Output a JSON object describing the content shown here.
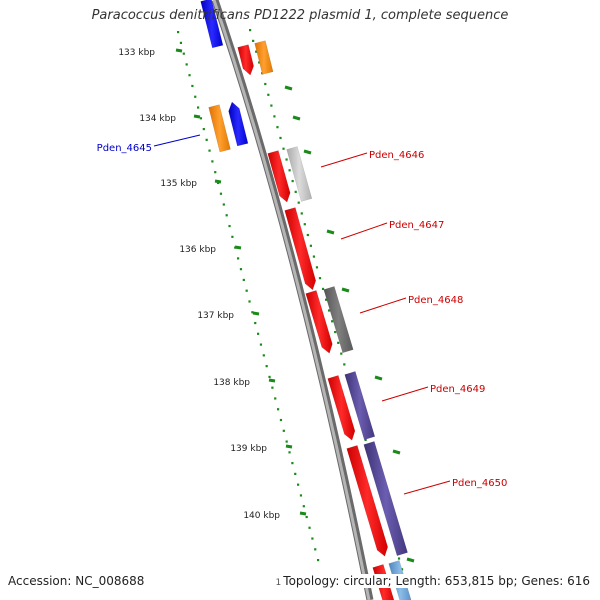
{
  "title": "Paracoccus denitrificans PD1222 plasmid 1, complete sequence",
  "footer": {
    "accession": "Accession: NC_008688",
    "summary": "Topology: circular; Length: 653,815 bp; Genes: 616",
    "stray_digit": "1"
  },
  "colors": {
    "backbone": "#8c8c8c",
    "tick_dots": "#1a8a1a",
    "reverse_label": "#0000cc",
    "forward_label": "#cc0000"
  },
  "scale_ticks": [
    "133 kbp",
    "134 kbp",
    "135 kbp",
    "136 kbp",
    "137 kbp",
    "138 kbp",
    "139 kbp",
    "140 kbp"
  ],
  "gene_labels": [
    {
      "text": "Pden_4645",
      "strand": "reverse"
    },
    {
      "text": "Pden_4646",
      "strand": "forward"
    },
    {
      "text": "Pden_4647",
      "strand": "forward"
    },
    {
      "text": "Pden_4648",
      "strand": "forward"
    },
    {
      "text": "Pden_4649",
      "strand": "forward"
    },
    {
      "text": "Pden_4650",
      "strand": "forward"
    }
  ],
  "legend_colors": {
    "cds": "#ff0000",
    "orange_feature": "#ff8c00",
    "reverse_cds": "#0000ff",
    "light_gray": "#c8c8c8",
    "dark_gray": "#6e6e6e",
    "purple": "#5a4c9a",
    "light_blue": "#6aa0d6"
  }
}
